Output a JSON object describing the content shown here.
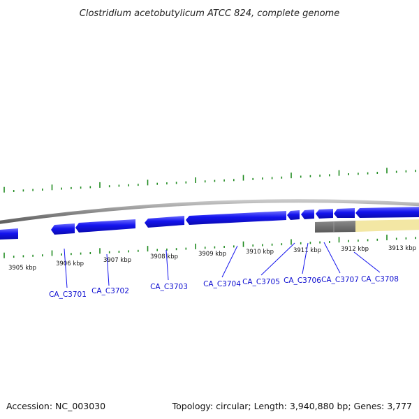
{
  "title": "Clostridium acetobutylicum ATCC 824, complete genome",
  "footer": {
    "accession": "Accession: NC_003030",
    "summary": "Topology: circular; Length: 3,940,880 bp; Genes: 3,777"
  },
  "colors": {
    "gene_blue": "#1414ee",
    "gene_label": "#0b0bd0",
    "tick_green": "#1f8a1f",
    "backbone_gray": "#8c8c8c",
    "dark_gray_feature": "#6e6e6e",
    "highlight_yellow": "#f3e7a4"
  },
  "ruler_labels": [
    "3905 kbp",
    "3906 kbp",
    "3907 kbp",
    "3908 kbp",
    "3909 kbp",
    "3910 kbp",
    "3911 kbp",
    "3912 kbp",
    "3913 kbp"
  ],
  "gene_labels": [
    "CA_C3701",
    "CA_C3702",
    "CA_C3703",
    "CA_C3704",
    "CA_C3705",
    "CA_C3706",
    "CA_C3707",
    "CA_C3708"
  ]
}
